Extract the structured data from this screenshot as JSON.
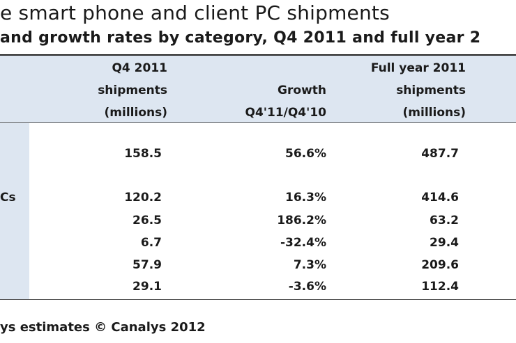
{
  "title": "e smart phone and client PC shipments",
  "subtitle": "and growth rates by category, Q4 2011 and full year 2",
  "columns": {
    "q4": "Q4 2011\nshipments\n(millions)",
    "growth": "Growth\nQ4'11/Q4'10",
    "fy": "Full year 2011\nshipments\n(millions)"
  },
  "rows": [
    {
      "label": "",
      "q4": "158.5",
      "growth": "56.6%",
      "fy": "487.7"
    },
    {
      "label": "Cs",
      "q4": "120.2",
      "growth": "16.3%",
      "fy": "414.6"
    },
    {
      "label": "",
      "q4": "26.5",
      "growth": "186.2%",
      "fy": "63.2"
    },
    {
      "label": "",
      "q4": "6.7",
      "growth": "-32.4%",
      "fy": "29.4"
    },
    {
      "label": "",
      "q4": "57.9",
      "growth": "7.3%",
      "fy": "209.6"
    },
    {
      "label": "",
      "q4": "29.1",
      "growth": "-3.6%",
      "fy": "112.4"
    }
  ],
  "source": "ys estimates © Canalys 2012",
  "colors": {
    "header_band": "#dde6f1",
    "text": "#1a1a1a"
  }
}
